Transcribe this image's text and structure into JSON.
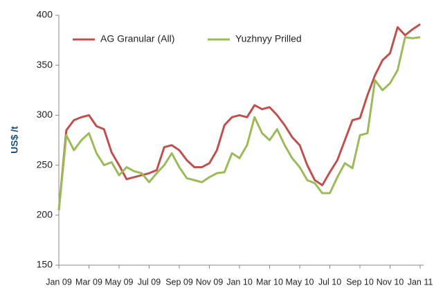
{
  "chart_data": {
    "type": "line",
    "y_label": "US$ /t",
    "categories": [
      "Jan 09",
      null,
      null,
      null,
      "Mar 09",
      null,
      null,
      null,
      "May 09",
      null,
      null,
      null,
      "Jul 09",
      null,
      null,
      null,
      "Sep 09",
      null,
      null,
      null,
      "Nov 09",
      null,
      null,
      null,
      "Jan 10",
      null,
      null,
      null,
      "Mar 10",
      null,
      null,
      null,
      "May 10",
      null,
      null,
      null,
      "Jul 10",
      null,
      null,
      null,
      "Sep 10",
      null,
      null,
      null,
      "Nov 10",
      null,
      null,
      null,
      "Jan 11"
    ],
    "series": [
      {
        "name": "AG Granular (All)",
        "color": "#c0504d",
        "values": [
          205,
          285,
          295,
          298,
          300,
          289,
          286,
          263,
          250,
          236,
          238,
          240,
          242,
          245,
          268,
          270,
          265,
          255,
          248,
          248,
          252,
          265,
          290,
          298,
          300,
          298,
          310,
          306,
          308,
          300,
          290,
          278,
          270,
          250,
          235,
          230,
          243,
          255,
          275,
          295,
          297,
          320,
          340,
          355,
          362,
          388,
          380,
          386,
          391
        ]
      },
      {
        "name": "Yuzhnyy Prilled",
        "color": "#9bbb59",
        "values": [
          205,
          280,
          265,
          275,
          282,
          262,
          250,
          253,
          240,
          248,
          244,
          242,
          233,
          242,
          250,
          262,
          248,
          237,
          235,
          233,
          238,
          242,
          243,
          262,
          257,
          270,
          298,
          282,
          275,
          286,
          270,
          257,
          248,
          235,
          232,
          222,
          222,
          238,
          252,
          247,
          280,
          282,
          335,
          325,
          332,
          345,
          378,
          377,
          378
        ]
      }
    ],
    "ylim": [
      150,
      400
    ],
    "yticks": [
      150,
      200,
      250,
      300,
      350,
      400
    ],
    "legend": "top"
  }
}
